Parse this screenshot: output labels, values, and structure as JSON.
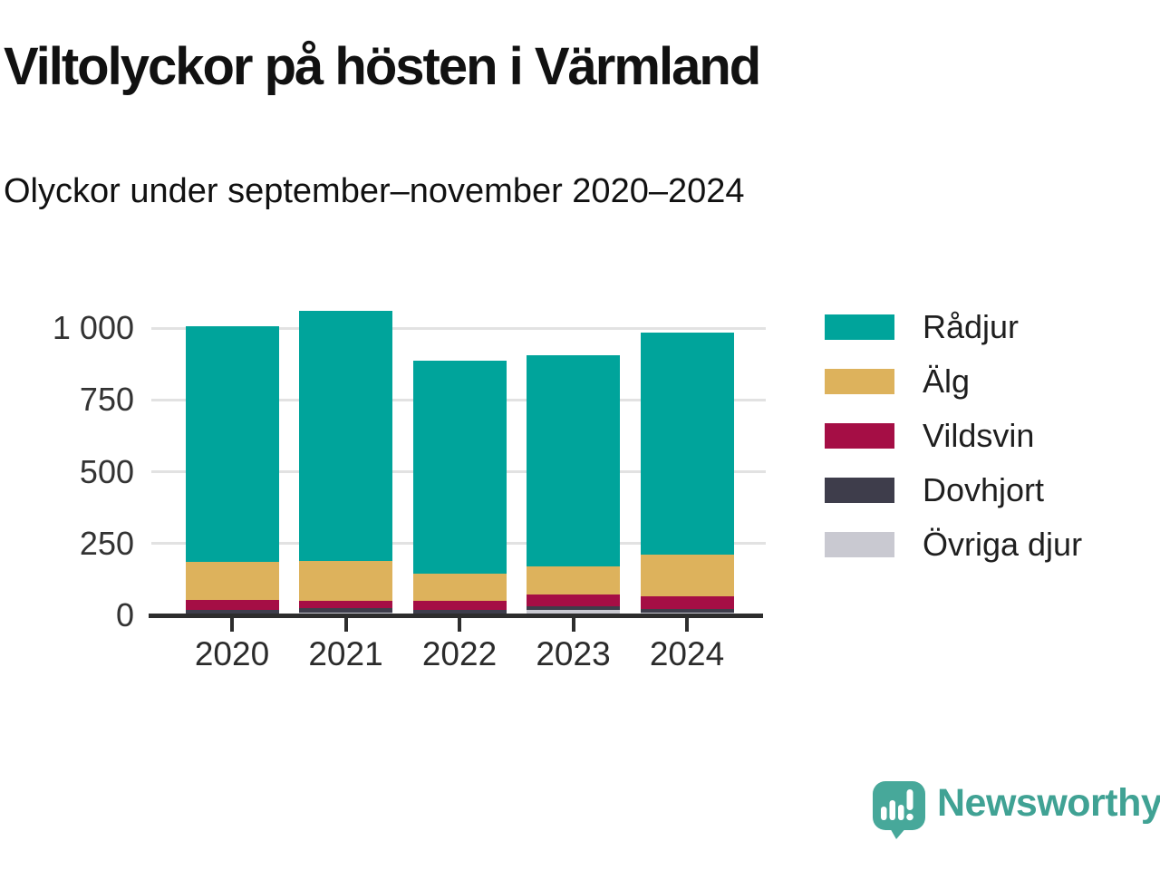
{
  "header": {
    "title": "Viltolyckor på hösten i Värmland",
    "subtitle": "Olyckor under september–november 2020–2024"
  },
  "chart_data": {
    "type": "bar",
    "stacked": true,
    "title": "Viltolyckor på hösten i Värmland",
    "subtitle": "Olyckor under september–november 2020–2024",
    "xlabel": "",
    "ylabel": "",
    "categories": [
      "2020",
      "2021",
      "2022",
      "2023",
      "2024"
    ],
    "series": [
      {
        "name": "Rådjur",
        "color": "#00a49b",
        "values": [
          822,
          872,
          740,
          735,
          772
        ]
      },
      {
        "name": "Älg",
        "color": "#ddb25c",
        "values": [
          130,
          138,
          95,
          98,
          145
        ]
      },
      {
        "name": "Vildsvin",
        "color": "#a50e45",
        "values": [
          37,
          28,
          31,
          41,
          44
        ]
      },
      {
        "name": "Dovhjort",
        "color": "#3e3d4b",
        "values": [
          11,
          14,
          14,
          13,
          13
        ]
      },
      {
        "name": "Övriga djur",
        "color": "#c9c9d1",
        "values": [
          7,
          10,
          6,
          19,
          10
        ]
      }
    ],
    "totals": [
      1007,
      1062,
      886,
      906,
      984
    ],
    "ylim": [
      0,
      1100
    ],
    "yticks": [
      {
        "value": 0,
        "label": "0"
      },
      {
        "value": 250,
        "label": "250"
      },
      {
        "value": 500,
        "label": "500"
      },
      {
        "value": 750,
        "label": "750"
      },
      {
        "value": 1000,
        "label": "1 000"
      }
    ],
    "grid": true,
    "legend_position": "right",
    "stack_order_bottom_to_top": [
      "Övriga djur",
      "Dovhjort",
      "Vildsvin",
      "Älg",
      "Rådjur"
    ]
  },
  "branding": {
    "logo_text": "Newsworthy",
    "logo_icon": "newsworthy-logo-icon",
    "brand_color": "#40a294"
  },
  "colors": {
    "axis": "#2d2d2d",
    "gridline": "#e2e2e2",
    "title_text": "#111111",
    "tick_text": "#333333"
  }
}
